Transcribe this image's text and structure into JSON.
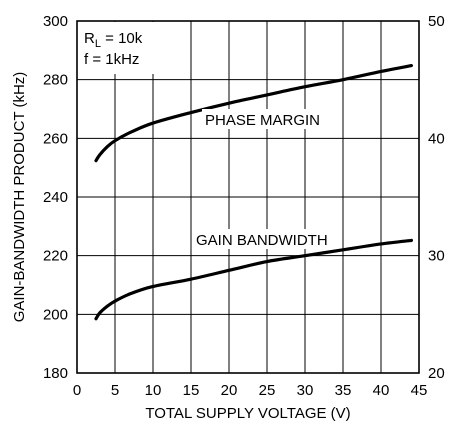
{
  "chart_data": {
    "type": "line",
    "xlabel": "TOTAL SUPPLY VOLTAGE (V)",
    "ylabel": "GAIN-BANDWIDTH PRODUCT (kHz)",
    "xlim": [
      0,
      45
    ],
    "ylim": [
      180,
      300
    ],
    "y2lim": [
      20,
      50
    ],
    "x_ticks": [
      "0",
      "5",
      "10",
      "15",
      "20",
      "25",
      "30",
      "35",
      "40",
      "45"
    ],
    "y_ticks": [
      "180",
      "200",
      "220",
      "240",
      "260",
      "280",
      "300"
    ],
    "y2_ticks": [
      "20",
      "30",
      "40",
      "50"
    ],
    "grid": true,
    "conditions": {
      "rl_prefix": "R",
      "rl_sub": "L",
      "rl_value": " = 10k",
      "freq": "f = 1kHz"
    },
    "series": [
      {
        "name": "PHASE MARGIN",
        "axis": "right",
        "x": [
          2.5,
          3,
          4,
          5,
          7,
          10,
          15,
          20,
          25,
          30,
          35,
          40,
          44
        ],
        "y": [
          38.1,
          38.6,
          39.3,
          39.8,
          40.5,
          41.3,
          42.2,
          43.0,
          43.7,
          44.4,
          45.0,
          45.7,
          46.2
        ]
      },
      {
        "name": "GAIN BANDWIDTH",
        "axis": "left",
        "x": [
          2.5,
          3,
          4,
          5,
          7,
          10,
          15,
          20,
          25,
          30,
          35,
          40,
          44
        ],
        "y": [
          198.5,
          200.5,
          202.8,
          204.5,
          207,
          209.5,
          212,
          215,
          218,
          220,
          222,
          224,
          225.2
        ]
      }
    ]
  }
}
